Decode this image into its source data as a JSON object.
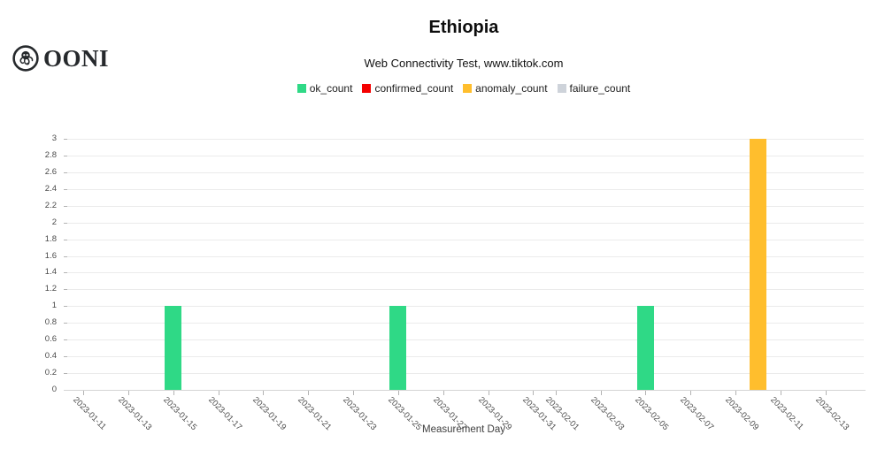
{
  "header": {
    "logo_text": "OONI"
  },
  "chart_data": {
    "type": "bar",
    "title": "Ethiopia",
    "subtitle": "Web Connectivity Test, www.tiktok.com",
    "xlabel": "Measurement Day",
    "grid": true,
    "legend_position": "top-center",
    "ylim": [
      0,
      3
    ],
    "y_ticks": [
      "0",
      "0.2",
      "0.4",
      "0.6",
      "0.8",
      "1",
      "1.2",
      "1.4",
      "1.6",
      "1.8",
      "2",
      "2.2",
      "2.4",
      "2.6",
      "2.8",
      "3"
    ],
    "x_axis": {
      "min": "2023-01-10T03:00:00Z",
      "max": "2023-02-14T17:00:00Z",
      "ticks": [
        "2023-01-11",
        "2023-01-13",
        "2023-01-15",
        "2023-01-17",
        "2023-01-19",
        "2023-01-21",
        "2023-01-23",
        "2023-01-25",
        "2023-01-27",
        "2023-01-29",
        "2023-01-31",
        "2023-02-01",
        "2023-02-03",
        "2023-02-05",
        "2023-02-07",
        "2023-02-09",
        "2023-02-11",
        "2023-02-13"
      ]
    },
    "series": [
      {
        "name": "ok_count",
        "color": "#2fd986",
        "points": [
          {
            "x": "2023-01-15",
            "y": 1
          },
          {
            "x": "2023-01-25",
            "y": 1
          },
          {
            "x": "2023-02-05",
            "y": 1
          }
        ]
      },
      {
        "name": "confirmed_count",
        "color": "#f40000",
        "points": []
      },
      {
        "name": "anomaly_count",
        "color": "#ffbe2d",
        "points": [
          {
            "x": "2023-02-10",
            "y": 3
          }
        ]
      },
      {
        "name": "failure_count",
        "color": "#ced3da",
        "points": []
      }
    ]
  }
}
